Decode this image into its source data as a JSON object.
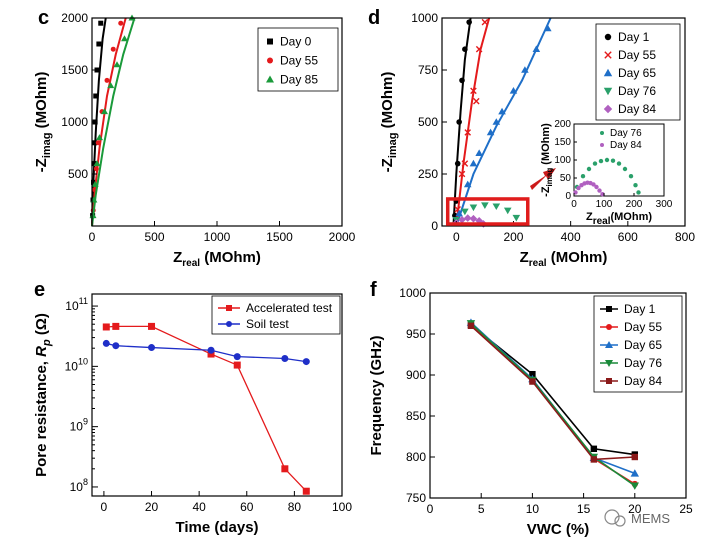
{
  "watermark": "MEMS",
  "chart_data": [
    {
      "id": "c",
      "panel_label": "c",
      "type": "scatter",
      "xlabel": "Zreal (MOhm)",
      "ylabel": "-Zimag (MOhm)",
      "xlim": [
        0,
        2000
      ],
      "ylim": [
        0,
        2000
      ],
      "xticks": [
        0,
        500,
        1000,
        1500,
        2000
      ],
      "yticks": [
        500,
        1000,
        1500,
        2000
      ],
      "legend_position": "top-right",
      "series": [
        {
          "name": "Day 0",
          "color": "#000000",
          "marker": "square",
          "points": [
            [
              5,
              100
            ],
            [
              8,
              250
            ],
            [
              12,
              420
            ],
            [
              15,
              600
            ],
            [
              20,
              800
            ],
            [
              25,
              1000
            ],
            [
              30,
              1250
            ],
            [
              40,
              1500
            ],
            [
              55,
              1750
            ],
            [
              70,
              1950
            ]
          ],
          "fit": [
            [
              0,
              0
            ],
            [
              10,
              400
            ],
            [
              30,
              900
            ],
            [
              55,
              1400
            ],
            [
              85,
              1800
            ],
            [
              110,
              2000
            ]
          ]
        },
        {
          "name": "Day 55",
          "color": "#e41a1c",
          "marker": "circle",
          "points": [
            [
              10,
              150
            ],
            [
              20,
              350
            ],
            [
              35,
              550
            ],
            [
              50,
              800
            ],
            [
              80,
              1100
            ],
            [
              120,
              1400
            ],
            [
              170,
              1700
            ],
            [
              230,
              1950
            ]
          ],
          "fit": [
            [
              0,
              0
            ],
            [
              20,
              300
            ],
            [
              60,
              750
            ],
            [
              120,
              1250
            ],
            [
              190,
              1650
            ],
            [
              270,
              2000
            ]
          ]
        },
        {
          "name": "Day 85",
          "color": "#1a9a3a",
          "marker": "triangle",
          "points": [
            [
              8,
              100
            ],
            [
              15,
              250
            ],
            [
              25,
              400
            ],
            [
              40,
              600
            ],
            [
              60,
              850
            ],
            [
              100,
              1100
            ],
            [
              150,
              1350
            ],
            [
              200,
              1550
            ],
            [
              260,
              1800
            ],
            [
              320,
              2000
            ]
          ],
          "fit": [
            [
              0,
              0
            ],
            [
              30,
              300
            ],
            [
              90,
              750
            ],
            [
              170,
              1250
            ],
            [
              250,
              1650
            ],
            [
              340,
              2000
            ]
          ]
        }
      ]
    },
    {
      "id": "d",
      "panel_label": "d",
      "type": "scatter",
      "xlabel": "Zreal (MOhm)",
      "ylabel": "-Zimag (MOhm)",
      "xlim": [
        -50,
        800
      ],
      "ylim": [
        0,
        1000
      ],
      "xticks": [
        0,
        200,
        400,
        600,
        800
      ],
      "yticks": [
        0,
        250,
        500,
        750,
        1000
      ],
      "legend_position": "top-right",
      "series": [
        {
          "name": "Day 1",
          "color": "#000000",
          "marker": "circle",
          "points": [
            [
              -5,
              50
            ],
            [
              0,
              120
            ],
            [
              5,
              300
            ],
            [
              10,
              500
            ],
            [
              20,
              700
            ],
            [
              30,
              850
            ],
            [
              45,
              980
            ]
          ],
          "fit": [
            [
              -10,
              0
            ],
            [
              0,
              250
            ],
            [
              15,
              550
            ],
            [
              30,
              800
            ],
            [
              50,
              1000
            ]
          ]
        },
        {
          "name": "Day 55",
          "color": "#e41a1c",
          "marker": "x",
          "points": [
            [
              5,
              80
            ],
            [
              20,
              250
            ],
            [
              40,
              450
            ],
            [
              60,
              650
            ],
            [
              80,
              850
            ],
            [
              100,
              980
            ],
            [
              30,
              300
            ],
            [
              70,
              600
            ]
          ],
          "fit": [
            [
              0,
              0
            ],
            [
              25,
              300
            ],
            [
              55,
              600
            ],
            [
              85,
              850
            ],
            [
              115,
              1000
            ]
          ]
        },
        {
          "name": "Day 65",
          "color": "#1f6fc8",
          "marker": "triangle",
          "points": [
            [
              10,
              60
            ],
            [
              40,
              200
            ],
            [
              80,
              350
            ],
            [
              120,
              450
            ],
            [
              160,
              550
            ],
            [
              200,
              650
            ],
            [
              240,
              750
            ],
            [
              280,
              850
            ],
            [
              320,
              950
            ],
            [
              60,
              300
            ],
            [
              140,
              500
            ]
          ],
          "fit": [
            [
              0,
              0
            ],
            [
              60,
              250
            ],
            [
              140,
              480
            ],
            [
              230,
              700
            ],
            [
              330,
              1000
            ]
          ]
        },
        {
          "name": "Day 76",
          "color": "#2aa06a",
          "marker": "triangle-down",
          "points": [
            [
              0,
              30
            ],
            [
              30,
              70
            ],
            [
              60,
              90
            ],
            [
              100,
              100
            ],
            [
              140,
              95
            ],
            [
              180,
              75
            ],
            [
              210,
              40
            ]
          ]
        },
        {
          "name": "Day 84",
          "color": "#b060c0",
          "marker": "diamond",
          "points": [
            [
              0,
              15
            ],
            [
              20,
              30
            ],
            [
              40,
              38
            ],
            [
              60,
              35
            ],
            [
              80,
              25
            ],
            [
              95,
              10
            ]
          ]
        }
      ],
      "inset": {
        "xlabel": "Zreal(MOhm)",
        "ylabel": "-Zimag (MOhm)",
        "xlim": [
          0,
          300
        ],
        "ylim": [
          0,
          200
        ],
        "xticks": [
          0,
          100,
          200,
          300
        ],
        "yticks": [
          0,
          50,
          100,
          150,
          200
        ],
        "series": [
          {
            "name": "Day 76",
            "color": "#2aa06a",
            "points": [
              [
                10,
                25
              ],
              [
                30,
                55
              ],
              [
                50,
                75
              ],
              [
                70,
                90
              ],
              [
                90,
                97
              ],
              [
                110,
                100
              ],
              [
                130,
                98
              ],
              [
                150,
                90
              ],
              [
                170,
                75
              ],
              [
                190,
                55
              ],
              [
                205,
                30
              ],
              [
                215,
                10
              ]
            ]
          },
          {
            "name": "Day 84",
            "color": "#b060c0",
            "points": [
              [
                5,
                10
              ],
              [
                15,
                22
              ],
              [
                25,
                30
              ],
              [
                35,
                35
              ],
              [
                45,
                37
              ],
              [
                55,
                36
              ],
              [
                65,
                32
              ],
              [
                75,
                25
              ],
              [
                85,
                15
              ],
              [
                95,
                5
              ]
            ]
          }
        ]
      }
    },
    {
      "id": "e",
      "panel_label": "e",
      "type": "line",
      "xlabel": "Time (days)",
      "ylabel": "Pore resistance, Rp (Ω)",
      "xlim": [
        -5,
        100
      ],
      "ylim_log10": [
        7.85,
        11.2
      ],
      "yscale": "log",
      "xticks": [
        0,
        20,
        40,
        60,
        80,
        100
      ],
      "yticks": [
        "10^8",
        "10^9",
        "10^10",
        "10^11"
      ],
      "legend_position": "top-right",
      "series": [
        {
          "name": "Accelerated test",
          "color": "#e41a1c",
          "marker": "square",
          "x": [
            1,
            5,
            20,
            45,
            56,
            76,
            85
          ],
          "y": [
            45000000000.0,
            46000000000.0,
            46000000000.0,
            16000000000.0,
            10500000000.0,
            200000000.0,
            85000000.0
          ]
        },
        {
          "name": "Soil test",
          "color": "#1f2fc8",
          "marker": "circle",
          "x": [
            1,
            5,
            20,
            45,
            56,
            76,
            85
          ],
          "y": [
            24000000000.0,
            22000000000.0,
            20500000000.0,
            18500000000.0,
            14500000000.0,
            13500000000.0,
            12000000000.0
          ]
        }
      ]
    },
    {
      "id": "f",
      "panel_label": "f",
      "type": "line",
      "xlabel": "VWC (%)",
      "ylabel": "Frequency (GHz)",
      "xlim": [
        0,
        25
      ],
      "ylim": [
        750,
        1000
      ],
      "xticks": [
        0,
        5,
        10,
        15,
        20,
        25
      ],
      "yticks": [
        750,
        800,
        850,
        900,
        950,
        1000
      ],
      "legend_position": "top-right",
      "x": [
        4,
        10,
        16,
        20
      ],
      "series": [
        {
          "name": "Day 1",
          "color": "#000000",
          "marker": "square",
          "values": [
            961,
            901,
            810,
            803
          ]
        },
        {
          "name": "Day 55",
          "color": "#e41a1c",
          "marker": "circle",
          "values": [
            962,
            893,
            798,
            767
          ]
        },
        {
          "name": "Day 65",
          "color": "#1f6fc8",
          "marker": "triangle",
          "values": [
            964,
            895,
            799,
            780
          ]
        },
        {
          "name": "Day 76",
          "color": "#1a8a3a",
          "marker": "triangle-down",
          "values": [
            963,
            894,
            800,
            765
          ]
        },
        {
          "name": "Day 84",
          "color": "#8b1a1a",
          "marker": "square",
          "values": [
            960,
            892,
            797,
            800
          ]
        }
      ]
    }
  ]
}
